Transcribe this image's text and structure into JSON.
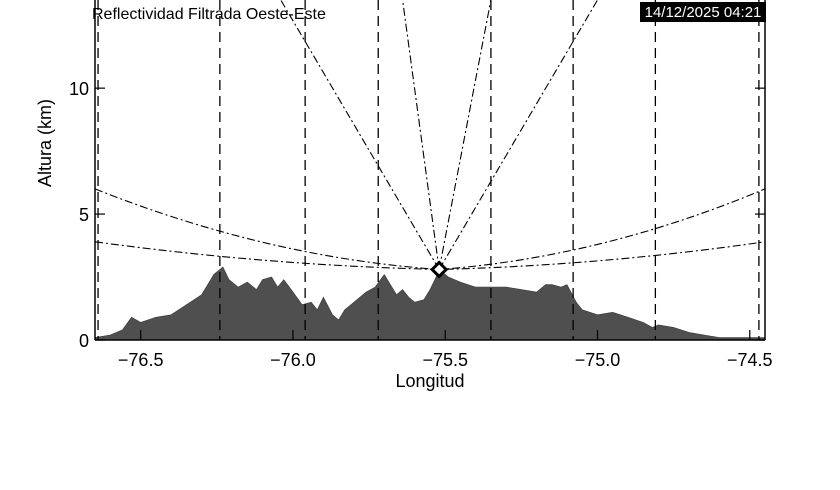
{
  "chart_data": {
    "type": "area",
    "title": "Reflectividad Filtrada Oeste-Este",
    "timestamp": "14/12/2025 04:21",
    "xlabel": "Longitud",
    "ylabel": "Altura (km)",
    "xlim": [
      -76.65,
      -74.45
    ],
    "ylim": [
      0,
      13.5
    ],
    "x_ticks": [
      {
        "value": -76.5,
        "label": "−76.5"
      },
      {
        "value": -76.0,
        "label": "−76.0"
      },
      {
        "value": -75.5,
        "label": "−75.5"
      },
      {
        "value": -75.0,
        "label": "−75.0"
      },
      {
        "value": -74.5,
        "label": "−74.5"
      }
    ],
    "y_ticks": [
      {
        "value": 0,
        "label": "0"
      },
      {
        "value": 5,
        "label": "5"
      },
      {
        "value": 10,
        "label": "10"
      }
    ],
    "radar": {
      "lon": -75.52,
      "alt": 2.8
    },
    "terrain": {
      "color": "#4f4f4f",
      "x": [
        -76.65,
        -76.6,
        -76.56,
        -76.53,
        -76.5,
        -76.45,
        -76.4,
        -76.35,
        -76.3,
        -76.28,
        -76.26,
        -76.25,
        -76.23,
        -76.21,
        -76.18,
        -76.15,
        -76.12,
        -76.1,
        -76.07,
        -76.05,
        -76.03,
        -76.0,
        -75.97,
        -75.94,
        -75.92,
        -75.9,
        -75.87,
        -75.85,
        -75.83,
        -75.8,
        -75.76,
        -75.73,
        -75.7,
        -75.68,
        -75.66,
        -75.64,
        -75.62,
        -75.6,
        -75.57,
        -75.55,
        -75.53,
        -75.52,
        -75.49,
        -75.45,
        -75.4,
        -75.35,
        -75.3,
        -75.25,
        -75.2,
        -75.17,
        -75.15,
        -75.12,
        -75.1,
        -75.07,
        -75.05,
        -75.0,
        -74.95,
        -74.9,
        -74.85,
        -74.82,
        -74.8,
        -74.75,
        -74.7,
        -74.65,
        -74.6,
        -74.55,
        -74.5,
        -74.45
      ],
      "y": [
        0.1,
        0.2,
        0.4,
        0.9,
        0.7,
        0.9,
        1.0,
        1.4,
        1.8,
        2.2,
        2.6,
        2.7,
        2.9,
        2.4,
        2.1,
        2.3,
        2.0,
        2.4,
        2.5,
        2.1,
        2.4,
        1.9,
        1.4,
        1.5,
        1.2,
        1.7,
        1.0,
        0.8,
        1.2,
        1.5,
        1.9,
        2.1,
        2.6,
        2.2,
        1.8,
        2.0,
        1.7,
        1.5,
        1.6,
        2.0,
        2.5,
        2.8,
        2.5,
        2.3,
        2.1,
        2.1,
        2.1,
        2.0,
        1.9,
        2.2,
        2.2,
        2.1,
        2.2,
        1.5,
        1.2,
        1.0,
        1.1,
        0.9,
        0.7,
        0.5,
        0.6,
        0.5,
        0.3,
        0.2,
        0.1,
        0.1,
        0.1,
        0.1
      ]
    },
    "beam_curves": [
      {
        "y_left": 6.0,
        "y_right": 6.0
      },
      {
        "y_left": 3.9,
        "y_right": 3.9
      }
    ],
    "beam_rays": [
      {
        "x_top": -76.04
      },
      {
        "x_top": -75.64
      },
      {
        "x_top": -75.35
      },
      {
        "x_top": -75.0
      }
    ],
    "range_rings": [
      -76.64,
      -76.24,
      -75.96,
      -75.72,
      -75.35,
      -75.08,
      -74.81,
      -74.47
    ],
    "grid": false,
    "legend": "none"
  }
}
